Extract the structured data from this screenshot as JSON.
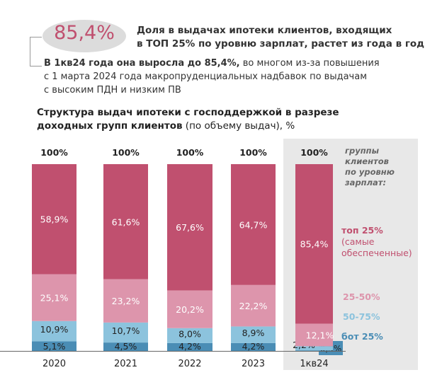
{
  "header": {
    "highlight_value": "85,4%",
    "headline_line1": "Доля в выдачах ипотеки клиентов, входящих",
    "headline_line2": "в ТОП 25% по уровню зарплат, растет из года в год",
    "para_bold": "В 1кв24 года она выросла до 85,4%,",
    "para_rest1": " во многом из-за повышения",
    "para_line2": "с 1 марта 2024 года макропруденциальных надбавок по выдачам",
    "para_line3": "с высоким ПДН и низким ПВ"
  },
  "chart_data": {
    "type": "bar",
    "stacked": true,
    "title_bold_line1": "Структура выдач ипотеки с господдержкой в разрезе",
    "title_bold_line2": "доходных групп клиентов",
    "title_rest": " (по объему выдач), %",
    "categories": [
      "2020",
      "2021",
      "2022",
      "2023",
      "1кв24"
    ],
    "totals_label": "100%",
    "legend_title": "группы клиентов по уровню зарплат:",
    "legend_title_lines": [
      "группы",
      "клиентов",
      "по уровню",
      "зарплат:"
    ],
    "series": [
      {
        "name": "бот 25%",
        "color": "#4a8db5",
        "values": [
          5.1,
          4.5,
          4.2,
          4.2,
          0.3
        ],
        "labels": [
          "5,1%",
          "4,5%",
          "4,2%",
          "4,2%",
          "0,3%"
        ]
      },
      {
        "name": "50-75%",
        "color": "#8cc3dd",
        "values": [
          10.9,
          10.7,
          8.0,
          8.9,
          2.2
        ],
        "labels": [
          "10,9%",
          "10,7%",
          "8,0%",
          "8,9%",
          "2,2%"
        ]
      },
      {
        "name": "25-50%",
        "color": "#dd95ac",
        "values": [
          25.1,
          23.2,
          20.2,
          22.2,
          12.1
        ],
        "labels": [
          "25,1%",
          "23,2%",
          "20,2%",
          "22,2%",
          "12,1%"
        ]
      },
      {
        "name": "топ 25%",
        "name_extra": "(самые обеспеченные)",
        "name_extra_lines": [
          "(самые",
          "обеспеченные)"
        ],
        "color": "#c0506f",
        "values": [
          58.9,
          61.6,
          67.6,
          64.7,
          85.4
        ],
        "labels": [
          "58,9%",
          "61,6%",
          "67,6%",
          "64,7%",
          "85,4%"
        ]
      }
    ],
    "highlighted_category": "1кв24",
    "ylim": [
      0,
      100
    ]
  }
}
